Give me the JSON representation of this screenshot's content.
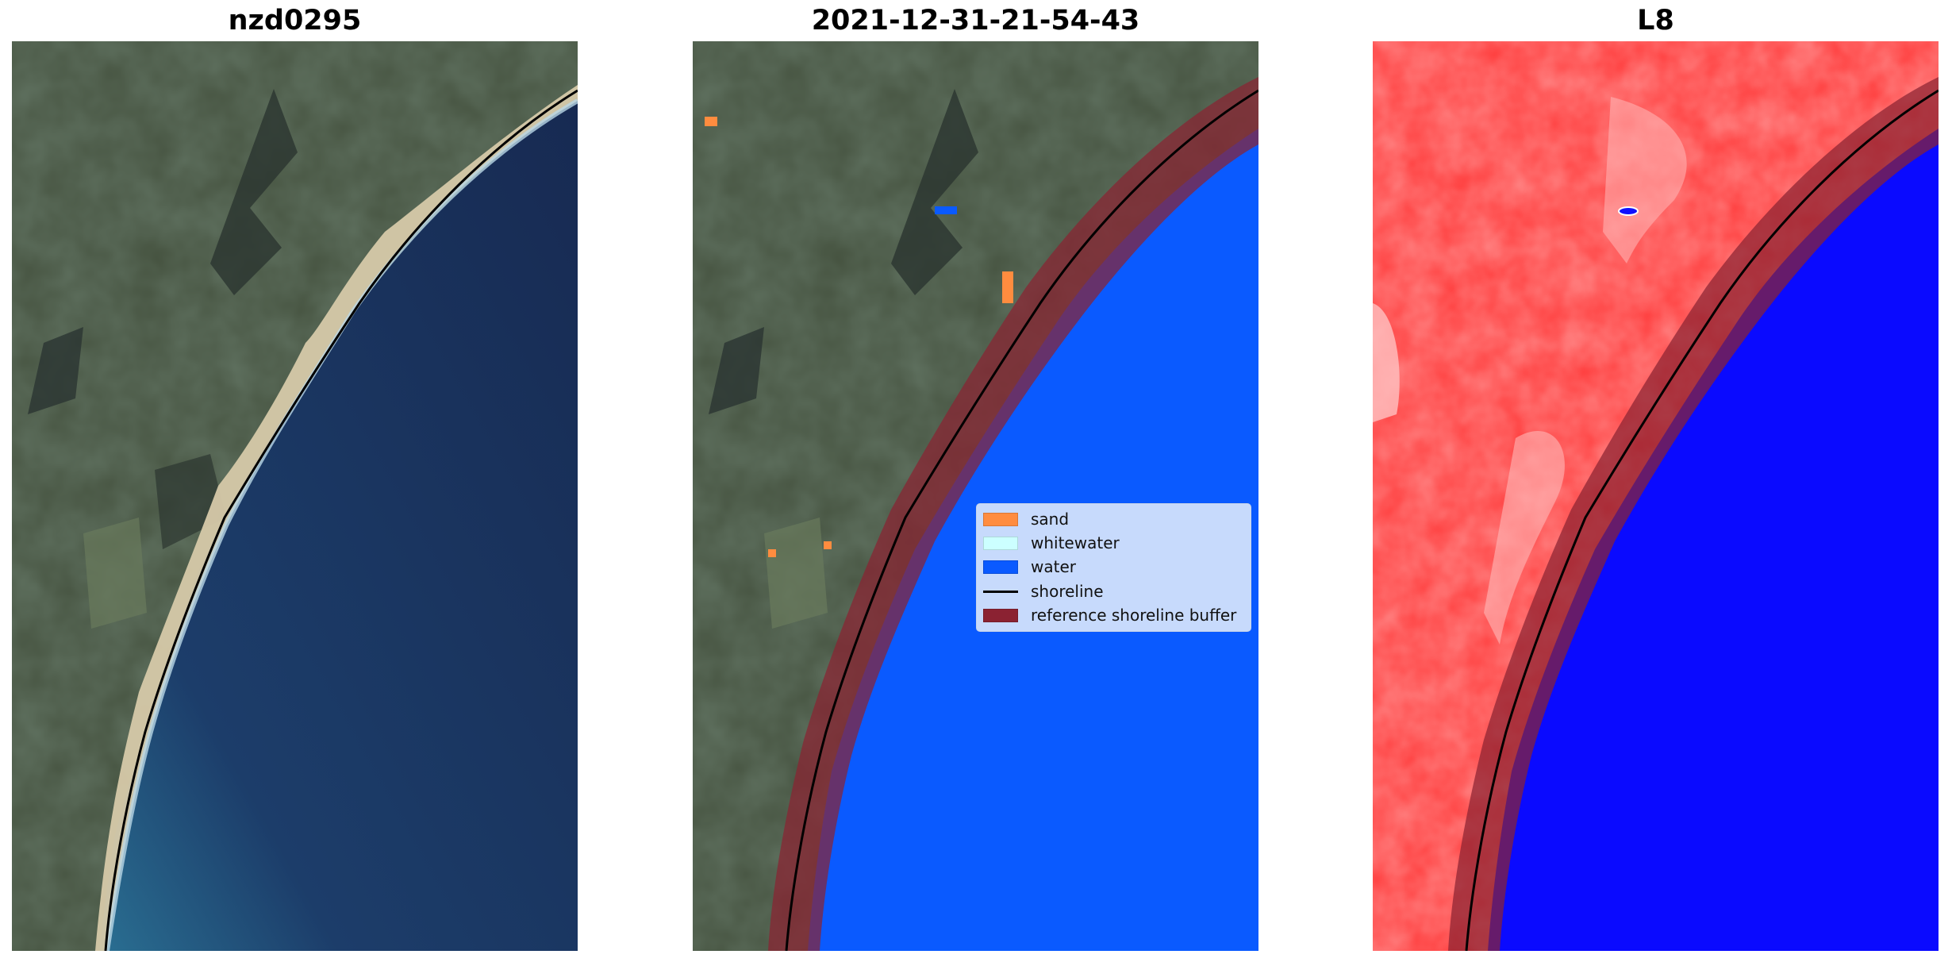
{
  "panels": {
    "left_title": "nzd0295",
    "middle_title": "2021-12-31-21-54-43",
    "right_title": "L8"
  },
  "legend": {
    "items": [
      {
        "label": "sand",
        "color": "#ff8c3f",
        "kind": "patch"
      },
      {
        "label": "whitewater",
        "color": "#ccffff",
        "kind": "patch"
      },
      {
        "label": "water",
        "color": "#0a5aff",
        "kind": "patch"
      },
      {
        "label": "shoreline",
        "color": "#000000",
        "kind": "line"
      },
      {
        "label": "reference shoreline buffer",
        "color": "#8b2232",
        "kind": "patch"
      }
    ]
  },
  "colors": {
    "land": "#3d4a3c",
    "ocean_deep": "#1a2a4f",
    "ocean_shallow": "#2f6b8e",
    "sand_beach": "#d9cdb0",
    "classified_water": "#0a5aff",
    "buffer": "#8b2232",
    "index_land": "#ff3030",
    "index_water": "#0a0aff"
  }
}
